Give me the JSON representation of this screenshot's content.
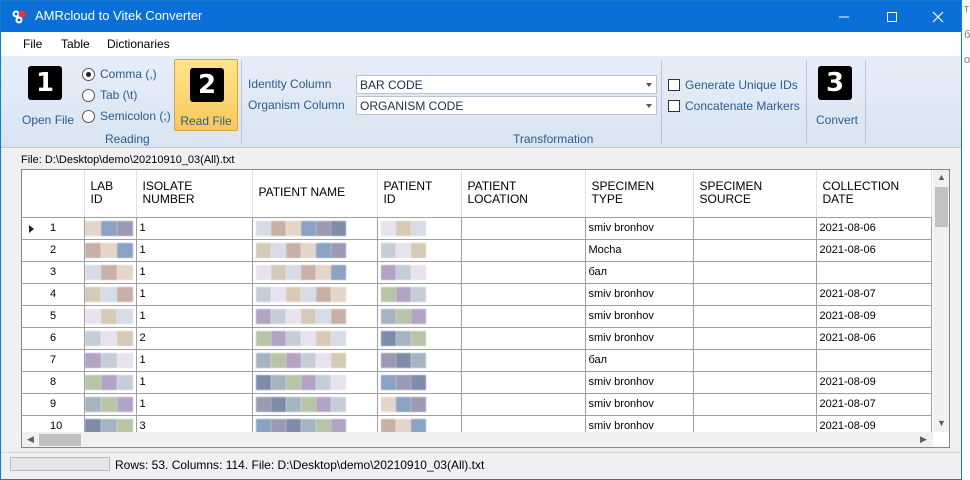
{
  "window": {
    "title": "AMRcloud to Vitek Converter"
  },
  "menu": [
    "File",
    "Table",
    "Dictionaries"
  ],
  "ribbon": {
    "open_file": {
      "badge": "1",
      "label": "Open File"
    },
    "delimiters": [
      {
        "label": "Comma (,)",
        "selected": true
      },
      {
        "label": "Tab (\\t)",
        "selected": false
      },
      {
        "label": "Semicolon (;)",
        "selected": false
      }
    ],
    "read_file": {
      "badge": "2",
      "label": "Read File"
    },
    "reading_group": "Reading",
    "identity_label": "Identity Column",
    "identity_value": "BAR CODE",
    "organism_label": "Organism Column",
    "organism_value": "ORGANISM CODE",
    "transformation_group": "Transformation",
    "generate_ids": "Generate Unique IDs",
    "concatenate": "Concatenate Markers",
    "convert": {
      "badge": "3",
      "label": "Convert"
    }
  },
  "file_label": "File: D:\\Desktop\\demo\\20210910_03(All).txt",
  "grid": {
    "columns": [
      "LAB\nID",
      "ISOLATE\nNUMBER",
      "PATIENT NAME",
      "PATIENT\nID",
      "PATIENT\nLOCATION",
      "SPECIMEN\nTYPE",
      "SPECIMEN\nSOURCE",
      "COLLECTION\nDATE"
    ],
    "rows": [
      {
        "n": "1",
        "isolate": "1",
        "type": "smiv bronhov",
        "date": "2021-08-06",
        "current": true
      },
      {
        "n": "2",
        "isolate": "1",
        "type": "Mocha",
        "date": "2021-08-06"
      },
      {
        "n": "3",
        "isolate": "1",
        "type": "бал",
        "date": ""
      },
      {
        "n": "4",
        "isolate": "1",
        "type": "smiv bronhov",
        "date": "2021-08-07"
      },
      {
        "n": "5",
        "isolate": "1",
        "type": "smiv bronhov",
        "date": "2021-08-09"
      },
      {
        "n": "6",
        "isolate": "2",
        "type": "smiv bronhov",
        "date": "2021-08-06"
      },
      {
        "n": "7",
        "isolate": "1",
        "type": "бал",
        "date": ""
      },
      {
        "n": "8",
        "isolate": "1",
        "type": "smiv bronhov",
        "date": "2021-08-09"
      },
      {
        "n": "9",
        "isolate": "1",
        "type": "smiv bronhov",
        "date": "2021-08-07"
      },
      {
        "n": "10",
        "isolate": "3",
        "type": "smiv bronhov",
        "date": "2021-08-09"
      }
    ]
  },
  "status": "Rows: 53. Columns: 114. File: D:\\Desktop\\demo\\20210910_03(All).txt",
  "background_text": [
    "т",
    "б",
    "о"
  ],
  "colors": {
    "titlebar": "#0a6fd6",
    "ribbon_text": "#2d5c8c",
    "read_button": "#f8c85a"
  }
}
